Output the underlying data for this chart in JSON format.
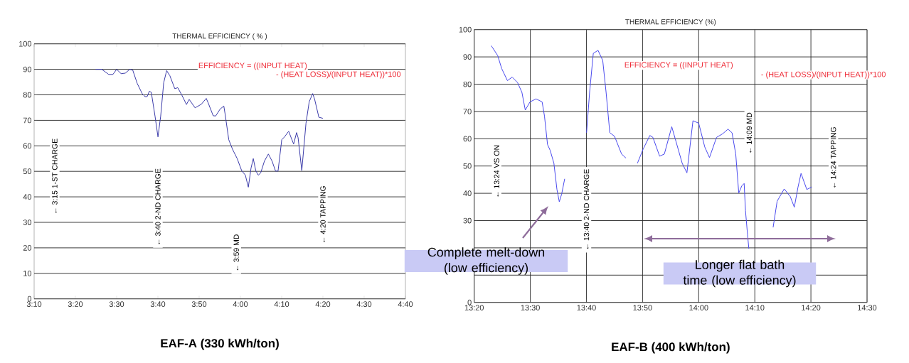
{
  "chart_data": [
    {
      "type": "line",
      "title": "THERMAL EFFICIENCY ( % )",
      "xlabel": "EAF-A (330 kWh/ton)",
      "grid": "y",
      "xlim": [
        3.1667,
        4.6667
      ],
      "ylim": [
        0,
        100
      ],
      "xticks": [
        {
          "value": 3.1667,
          "label": "3:10"
        },
        {
          "value": 3.3333,
          "label": "3:20"
        },
        {
          "value": 3.5,
          "label": "3:30"
        },
        {
          "value": 3.6667,
          "label": "3:40"
        },
        {
          "value": 3.8333,
          "label": "3:50"
        },
        {
          "value": 4.0,
          "label": "4:00"
        },
        {
          "value": 4.1667,
          "label": "4:10"
        },
        {
          "value": 4.3333,
          "label": "4:20"
        },
        {
          "value": 4.5,
          "label": "4:30"
        },
        {
          "value": 4.6667,
          "label": "4:40"
        }
      ],
      "yticks": [
        0,
        10,
        20,
        30,
        40,
        50,
        60,
        70,
        80,
        90,
        100
      ],
      "x": [
        3.415,
        3.44,
        3.468,
        3.485,
        3.5,
        3.518,
        3.535,
        3.553,
        3.565,
        3.583,
        3.603,
        3.615,
        3.623,
        3.632,
        3.64,
        3.655,
        3.667,
        3.678,
        3.69,
        3.702,
        3.715,
        3.735,
        3.747,
        3.765,
        3.782,
        3.793,
        3.817,
        3.842,
        3.862,
        3.87,
        3.89,
        3.9,
        3.918,
        3.933,
        3.938,
        3.953,
        3.968,
        3.987,
        4.005,
        4.02,
        4.032,
        4.043,
        4.052,
        4.062,
        4.072,
        4.082,
        4.097,
        4.113,
        4.128,
        4.142,
        4.152,
        4.167,
        4.178,
        4.195,
        4.215,
        4.227,
        4.233,
        4.248,
        4.265,
        4.278,
        4.292,
        4.3,
        4.317,
        4.333
      ],
      "series": [
        {
          "color": "#3c3caa",
          "values": [
            90,
            90,
            88,
            88,
            90,
            88.3,
            88.5,
            90,
            89.7,
            84.5,
            80.5,
            79.3,
            79.3,
            81.4,
            81,
            71.7,
            63.5,
            71.7,
            84.7,
            89.5,
            87.5,
            82.4,
            82.8,
            79.6,
            76.2,
            78.2,
            74.9,
            76.3,
            78.6,
            76.8,
            71.8,
            71.7,
            74.4,
            75.6,
            72.6,
            62.4,
            58.7,
            55,
            50.3,
            48.5,
            43.8,
            51.3,
            55,
            50.3,
            48.5,
            49.4,
            54,
            56.8,
            54,
            50.1,
            50.1,
            62.4,
            63.5,
            65.7,
            60.7,
            65.2,
            63.2,
            50.3,
            68.9,
            77.3,
            80.5,
            78.2,
            71.2,
            70.8
          ]
        }
      ],
      "annotations": [
        "EFFICIENCY = ((INPUT HEAT)",
        "- (HEAT LOSS)/(INPUT HEAT))*100",
        "← 3:15 1-ST CHARGE",
        "← 3:40 2-ND CHARGE",
        "← 3:59 MD",
        "← 4:20 TAPPING"
      ]
    },
    {
      "type": "line",
      "title": "THERMAL EFFICIENCY (%)",
      "xlabel": "EAF-B (400 kWh/ton)",
      "grid": true,
      "xlim": [
        13.3333,
        14.5
      ],
      "ylim": [
        0,
        100
      ],
      "xticks": [
        {
          "value": 13.3333,
          "label": "13:20"
        },
        {
          "value": 13.5,
          "label": "13:30"
        },
        {
          "value": 13.6667,
          "label": "13:40"
        },
        {
          "value": 13.8333,
          "label": "13:50"
        },
        {
          "value": 14.0,
          "label": "14:00"
        },
        {
          "value": 14.1667,
          "label": "14:10"
        },
        {
          "value": 14.3333,
          "label": "14:20"
        },
        {
          "value": 14.5,
          "label": "14:30"
        }
      ],
      "yticks": [
        0,
        {
          "value": 10,
          "label": null
        },
        {
          "value": 20,
          "label": null
        },
        30,
        40,
        50,
        60,
        70,
        80,
        90,
        100
      ],
      "x": [
        13.384,
        13.403,
        13.415,
        13.432,
        13.446,
        13.462,
        13.475,
        13.485,
        13.499,
        13.517,
        13.535,
        13.542,
        13.551,
        13.559,
        13.57,
        13.579,
        13.586,
        13.593,
        13.602,
        13.63,
        13.667,
        13.676,
        13.687,
        13.701,
        13.715,
        13.725,
        13.736,
        13.75,
        13.771,
        13.784,
        13.8,
        13.818,
        13.835,
        13.855,
        13.864,
        13.884,
        13.898,
        13.92,
        13.933,
        13.951,
        13.965,
        13.983,
        14.0,
        14.018,
        14.032,
        14.053,
        14.071,
        14.087,
        14.099,
        14.11,
        14.119,
        14.128,
        14.135,
        14.139,
        14.145,
        14.149,
        14.18,
        14.221,
        14.233,
        14.254,
        14.272,
        14.284,
        14.295,
        14.304,
        14.321,
        14.336
      ],
      "series": [
        {
          "color": "#4a4aee",
          "values": [
            94.1,
            90.5,
            85.7,
            81.3,
            82.6,
            80.6,
            77,
            70.5,
            73.5,
            74.6,
            73.5,
            68.3,
            57.9,
            55.7,
            51,
            41.4,
            36.9,
            39.7,
            45.3,
            null,
            62.2,
            77,
            91.3,
            92.4,
            88.7,
            77,
            62.2,
            60.9,
            54.4,
            52.9,
            null,
            51,
            56.2,
            61.2,
            60.5,
            53.6,
            54.4,
            64.4,
            58.8,
            51,
            47.5,
            66.6,
            65.7,
            57,
            53.1,
            60.5,
            61.8,
            63.5,
            62.2,
            54.4,
            40.1,
            42.7,
            43.6,
            33.6,
            24.9,
            19.7,
            null,
            27.5,
            37.1,
            41.6,
            38.8,
            34.9,
            42.3,
            47.3,
            41.4,
            42.3
          ]
        }
      ],
      "annotations": [
        "EFFICIENCY = ((INPUT HEAT)",
        "- (HEAT LOSS)/(INPUT HEAT))*100",
        "← 13:24 VS ON",
        "← 13:40 2-ND CHARGE",
        "← 14:09 MD",
        "← 14:24 TAPPING",
        "Complete melt-down (low efficiency)",
        "Longer flat bath time (low efficiency)"
      ]
    }
  ]
}
